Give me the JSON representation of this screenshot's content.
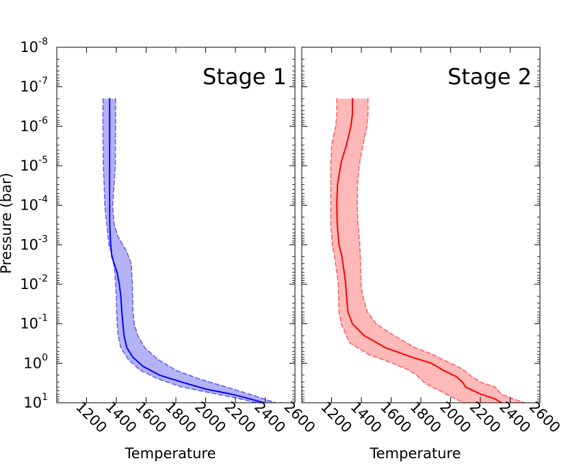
{
  "chart_data": [
    {
      "type": "line",
      "title": "Stage 1",
      "xlabel": "Temperature",
      "ylabel": "Pressure (bar)",
      "xlim": [
        1000,
        2600
      ],
      "ylim": [
        10,
        1e-08
      ],
      "yscale": "log",
      "y_inverted": true,
      "grid": false,
      "x_ticks": [
        "1200",
        "1400",
        "1600",
        "1800",
        "2000",
        "2200",
        "2400",
        "2600"
      ],
      "y_ticks": [
        {
          "base": "10",
          "exp": "-8"
        },
        {
          "base": "10",
          "exp": "-7"
        },
        {
          "base": "10",
          "exp": "-6"
        },
        {
          "base": "10",
          "exp": "-5"
        },
        {
          "base": "10",
          "exp": "-4"
        },
        {
          "base": "10",
          "exp": "-3"
        },
        {
          "base": "10",
          "exp": "-2"
        },
        {
          "base": "10",
          "exp": "-1"
        },
        {
          "base": "10",
          "exp": "0"
        },
        {
          "base": "10",
          "exp": "1"
        }
      ],
      "color": "#0000ff",
      "fill_color": "#b3b3f5",
      "series": [
        {
          "role": "median",
          "x": [
            1355,
            1355,
            1355,
            1355,
            1355,
            1356,
            1358,
            1362,
            1370,
            1385,
            1405,
            1420,
            1430,
            1437,
            1444,
            1452,
            1470,
            1510,
            1580,
            1690,
            1840,
            2000,
            2170,
            2300,
            2390
          ],
          "y": [
            2e-07,
            1e-06,
            1e-05,
            3e-05,
            0.0001,
            0.0003,
            0.0005,
            0.001,
            0.002,
            0.003,
            0.005,
            0.01,
            0.02,
            0.05,
            0.1,
            0.2,
            0.4,
            0.7,
            1.2,
            2,
            3,
            4.5,
            6,
            8,
            10
          ]
        },
        {
          "role": "lower_bound",
          "x": [
            1310,
            1310,
            1312,
            1318,
            1322,
            1335,
            1350,
            1375,
            1390,
            1395,
            1400,
            1402,
            1405,
            1412,
            1430,
            1480,
            1560,
            1680,
            1840,
            2020,
            2200,
            2340
          ],
          "y": [
            2e-07,
            1e-06,
            1e-05,
            3e-05,
            0.0001,
            0.0003,
            0.001,
            0.002,
            0.005,
            0.01,
            0.02,
            0.05,
            0.1,
            0.2,
            0.4,
            0.8,
            1.5,
            2.5,
            4,
            5.5,
            7.5,
            10
          ]
        },
        {
          "role": "upper_bound",
          "x": [
            1395,
            1395,
            1393,
            1385,
            1375,
            1385,
            1410,
            1470,
            1500,
            1508,
            1512,
            1520,
            1545,
            1590,
            1680,
            1800,
            1960,
            2140,
            2320,
            2470
          ],
          "y": [
            2e-07,
            1e-06,
            1e-05,
            3e-05,
            0.0001,
            0.0003,
            0.0006,
            0.0015,
            0.003,
            0.01,
            0.05,
            0.1,
            0.2,
            0.4,
            0.8,
            1.5,
            2.5,
            4,
            6.5,
            10
          ]
        }
      ]
    },
    {
      "type": "line",
      "title": "Stage 2",
      "xlabel": "Temperature",
      "xlim": [
        1000,
        2600
      ],
      "ylim": [
        10,
        1e-08
      ],
      "yscale": "log",
      "y_inverted": true,
      "grid": false,
      "x_ticks": [
        "1200",
        "1400",
        "1600",
        "1800",
        "2000",
        "2200",
        "2400",
        "2600"
      ],
      "color": "#ff0000",
      "fill_color": "#ffb9b9",
      "series": [
        {
          "role": "median",
          "x": [
            1340,
            1340,
            1330,
            1300,
            1265,
            1240,
            1235,
            1238,
            1250,
            1270,
            1285,
            1295,
            1300,
            1310,
            1340,
            1420,
            1560,
            1740,
            1870,
            1950,
            2040,
            2080,
            2100,
            2200,
            2300,
            2340
          ],
          "y": [
            2e-07,
            5e-07,
            1e-06,
            3e-06,
            8e-06,
            3e-05,
            0.0001,
            0.0003,
            0.001,
            0.002,
            0.005,
            0.01,
            0.02,
            0.05,
            0.1,
            0.2,
            0.4,
            0.7,
            1,
            1.5,
            2.2,
            3,
            4,
            6,
            8,
            10
          ]
        },
        {
          "role": "lower_bound",
          "x": [
            1235,
            1235,
            1228,
            1200,
            1195,
            1195,
            1195,
            1205,
            1220,
            1235,
            1245,
            1250,
            1265,
            1320,
            1450,
            1610,
            1720,
            1770,
            1820,
            1870,
            1930,
            2000,
            2090
          ],
          "y": [
            2e-07,
            5e-07,
            1e-06,
            3e-06,
            1e-05,
            0.0001,
            0.0003,
            0.001,
            0.002,
            0.005,
            0.01,
            0.05,
            0.1,
            0.3,
            0.6,
            1,
            1.5,
            2,
            3,
            4,
            5,
            7,
            10
          ]
        },
        {
          "role": "upper_bound",
          "x": [
            1445,
            1445,
            1438,
            1410,
            1385,
            1375,
            1373,
            1378,
            1390,
            1395,
            1398,
            1410,
            1440,
            1500,
            1620,
            1760,
            1880,
            2000,
            2080,
            2130,
            2200,
            2300,
            2340,
            2420,
            2500
          ],
          "y": [
            2e-07,
            5e-07,
            1e-06,
            3e-06,
            1e-05,
            3e-05,
            0.0001,
            0.0003,
            0.001,
            0.003,
            0.01,
            0.02,
            0.05,
            0.1,
            0.2,
            0.4,
            0.6,
            1,
            1.4,
            2,
            3,
            4,
            6,
            8,
            10
          ]
        }
      ]
    }
  ]
}
